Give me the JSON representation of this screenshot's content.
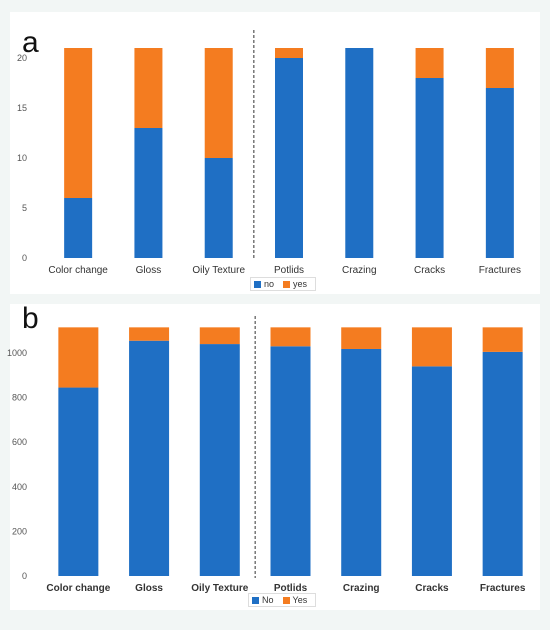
{
  "chart_data": [
    {
      "type": "bar",
      "stacked": true,
      "panel_label": "a",
      "categories": [
        "Color change",
        "Gloss",
        "Oily Texture",
        "Potlids",
        "Crazing",
        "Cracks",
        "Fractures"
      ],
      "series": [
        {
          "name": "no",
          "color": "#1f6fc4",
          "values": [
            6,
            13,
            10,
            20,
            21,
            18,
            17
          ]
        },
        {
          "name": "yes",
          "color": "#f47c20",
          "values": [
            15,
            8,
            11,
            1,
            0,
            3,
            4
          ]
        }
      ],
      "yticks": [
        0,
        5,
        10,
        15,
        20
      ],
      "ylim": [
        0,
        22
      ],
      "divider_after_index": 2,
      "grid": false,
      "legend_position": "bottom-center",
      "bold_category_labels": false
    },
    {
      "type": "bar",
      "stacked": true,
      "panel_label": "b",
      "categories": [
        "Color change",
        "Gloss",
        "Oily Texture",
        "Potlids",
        "Crazing",
        "Cracks",
        "Fractures"
      ],
      "series": [
        {
          "name": "No",
          "color": "#1f6fc4",
          "values": [
            845,
            1055,
            1040,
            1030,
            1018,
            940,
            1005
          ]
        },
        {
          "name": "Yes",
          "color": "#f47c20",
          "values": [
            270,
            60,
            75,
            85,
            97,
            175,
            110
          ]
        }
      ],
      "yticks": [
        0,
        200,
        400,
        600,
        800,
        1000
      ],
      "ylim": [
        0,
        1130
      ],
      "divider_after_index": 2,
      "grid": false,
      "legend_position": "bottom-center",
      "bold_category_labels": true
    }
  ]
}
